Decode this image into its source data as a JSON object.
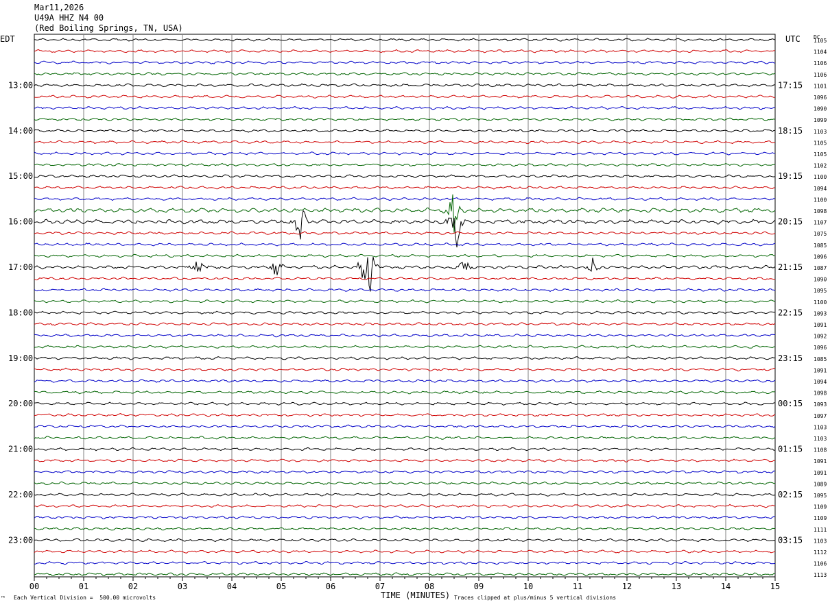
{
  "header": {
    "date": "Mar11,2026",
    "station": "U49A HHZ N4 00",
    "location": "(Red Boiling Springs, TN, USA)"
  },
  "left_tz": "EDT",
  "right_tz": "UTC",
  "dc_label": "DC",
  "footer": {
    "scale_note": "Each Vertical Division =  500.00 microvolts",
    "clip_note": "Traces clipped at plus/minus 5 vertical divisions",
    "corner_mark": "™"
  },
  "colors": {
    "cycle": [
      "#000000",
      "#d00000",
      "#0000c8",
      "#006400"
    ],
    "grid": "#808080"
  },
  "chart_data": {
    "type": "line",
    "title": "U49A HHZ N4 00 (Red Boiling Springs, TN, USA) Mar11,2026",
    "xlabel": "TIME (MINUTES)",
    "xlim": [
      0,
      15
    ],
    "x_ticks": [
      "00",
      "01",
      "02",
      "03",
      "04",
      "05",
      "06",
      "07",
      "08",
      "09",
      "10",
      "11",
      "12",
      "13",
      "14",
      "15"
    ],
    "left_hour_labels": [
      "13:00",
      "14:00",
      "15:00",
      "16:00",
      "17:00",
      "18:00",
      "19:00",
      "20:00",
      "21:00",
      "22:00",
      "23:00"
    ],
    "right_hour_labels": [
      "17:15",
      "18:15",
      "19:15",
      "20:15",
      "21:15",
      "22:15",
      "23:15",
      "00:15",
      "01:15",
      "02:15",
      "03:15"
    ],
    "dc_offsets": [
      1105,
      1104,
      1106,
      1106,
      1101,
      1096,
      1090,
      1099,
      1103,
      1105,
      1105,
      1102,
      1100,
      1094,
      1100,
      1098,
      1107,
      1075,
      1085,
      1096,
      1087,
      1090,
      1095,
      1100,
      1093,
      1091,
      1092,
      1096,
      1085,
      1091,
      1094,
      1098,
      1093,
      1097,
      1103,
      1103,
      1108,
      1091,
      1091,
      1089,
      1095,
      1109,
      1109,
      1111,
      1103,
      1112,
      1106,
      1113
    ],
    "events": [
      {
        "trace": 15,
        "minute": 8.5,
        "amplitude": 2.5
      },
      {
        "trace": 16,
        "minute": 5.4,
        "amplitude": 3
      },
      {
        "trace": 16,
        "minute": 8.55,
        "amplitude": 3
      },
      {
        "trace": 20,
        "minute": 6.75,
        "amplitude": 5
      },
      {
        "trace": 20,
        "minute": 3.3,
        "amplitude": 1.2
      },
      {
        "trace": 20,
        "minute": 4.9,
        "amplitude": 1.2
      },
      {
        "trace": 20,
        "minute": 8.7,
        "amplitude": 1.2
      },
      {
        "trace": 20,
        "minute": 11.3,
        "amplitude": 1.0
      }
    ]
  }
}
